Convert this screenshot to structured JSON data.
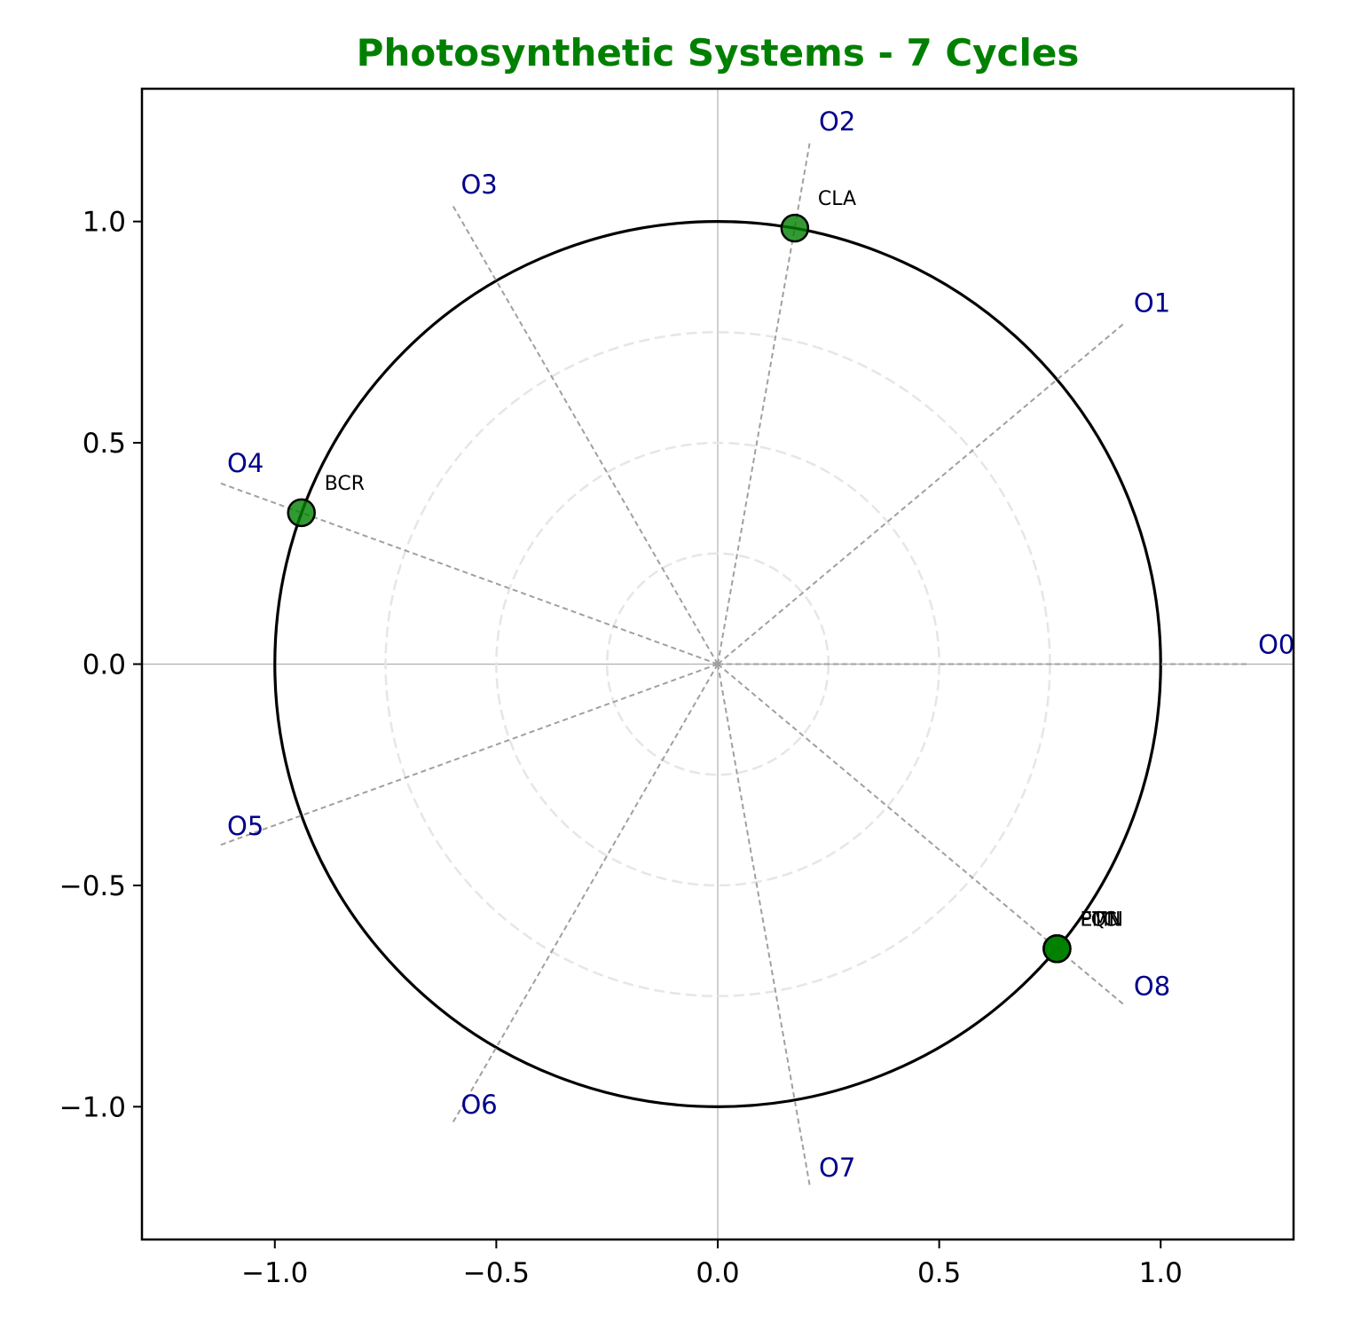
{
  "chart_data": {
    "type": "scatter",
    "title": "Photosynthetic Systems - 7 Cycles",
    "xlabel": "",
    "ylabel": "",
    "xlim": [
      -1.3,
      1.3
    ],
    "ylim": [
      -1.3,
      1.3
    ],
    "xticks": [
      -1.0,
      -0.5,
      0.0,
      0.5,
      1.0
    ],
    "yticks": [
      -1.0,
      -0.5,
      0.0,
      0.5,
      1.0
    ],
    "tick_labels": [
      "−1.0",
      "−0.5",
      "0.0",
      "0.5",
      "1.0"
    ],
    "grid": false,
    "unit_circle_radius": 1.0,
    "reference_circle_radii": [
      0.25,
      0.5,
      0.75
    ],
    "spoke_length": 1.2,
    "spokes": [
      {
        "label": "O0",
        "angle_deg": 0
      },
      {
        "label": "O1",
        "angle_deg": 40
      },
      {
        "label": "O2",
        "angle_deg": 80
      },
      {
        "label": "O3",
        "angle_deg": 120
      },
      {
        "label": "O4",
        "angle_deg": 160
      },
      {
        "label": "O5",
        "angle_deg": 200
      },
      {
        "label": "O6",
        "angle_deg": 240
      },
      {
        "label": "O7",
        "angle_deg": 280
      },
      {
        "label": "O8",
        "angle_deg": 320
      }
    ],
    "points": [
      {
        "label": "CLA",
        "x": 0.174,
        "y": 0.985
      },
      {
        "label": "BCR",
        "x": -0.94,
        "y": 0.342
      },
      {
        "label": "PMN",
        "x": 0.766,
        "y": -0.643
      },
      {
        "label": "LQN",
        "x": 0.766,
        "y": -0.643
      },
      {
        "label": "ETC",
        "x": 0.766,
        "y": -0.643
      }
    ],
    "colors": {
      "title": "#008000",
      "point_fill": "#008000",
      "point_edge": "#000000",
      "spoke_label": "#00008b",
      "spoke_line": "#a0a0a0",
      "reference_circle": "#e6e6e6",
      "unit_circle": "#000000",
      "axis_line": "#b0b0b0"
    }
  }
}
